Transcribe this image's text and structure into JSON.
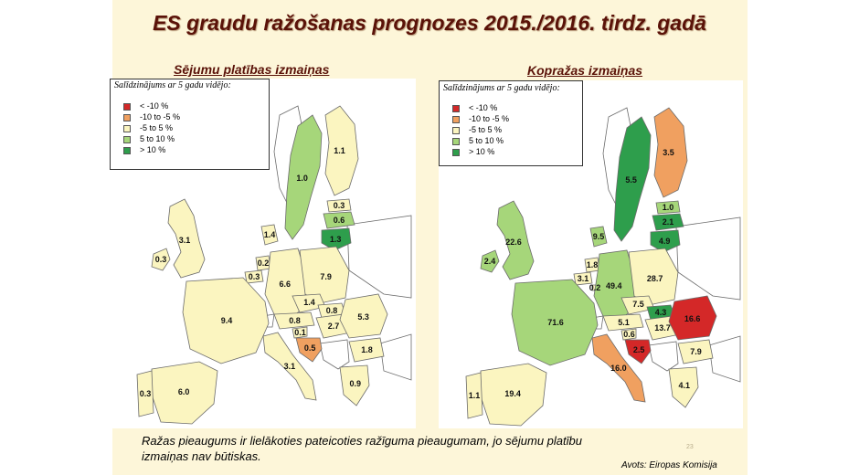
{
  "title": "ES graudu ražošanas prognozes 2015./2016. tirdz. gadā",
  "comparison_label": "Salīdzinājums ar 5 gadu vidējo:",
  "colors": {
    "lt_-10": "#d42828",
    "-10_-5": "#f0a060",
    "-5_5": "#fbf5c0",
    "5_10": "#a6d67a",
    "gt_10": "#2e9e4c",
    "non_eu": "#ffffff",
    "sea": "#ffffff",
    "border": "#6b6b6b"
  },
  "left_map": {
    "title": "Sējumu platības izmaiņas",
    "legend": [
      {
        "label": "< -10 %",
        "color_key": "lt_-10"
      },
      {
        "label": "-10 to -5 %",
        "color_key": "-10_-5"
      },
      {
        "label": "-5 to 5 %",
        "color_key": "-5_5"
      },
      {
        "label": "5 to 10 %",
        "color_key": "5_10"
      },
      {
        "label": "> 10 %",
        "color_key": "gt_10"
      }
    ],
    "regions": [
      {
        "id": "IE",
        "value": "0.3",
        "class": "-5_5"
      },
      {
        "id": "UK",
        "value": "3.1",
        "class": "-5_5"
      },
      {
        "id": "DK",
        "value": "1.4",
        "class": "-5_5"
      },
      {
        "id": "SE",
        "value": "1.0",
        "class": "5_10"
      },
      {
        "id": "FI",
        "value": "1.1",
        "class": "-5_5"
      },
      {
        "id": "EE",
        "value": "0.3",
        "class": "-5_5"
      },
      {
        "id": "LV",
        "value": "0.6",
        "class": "5_10"
      },
      {
        "id": "LT",
        "value": "1.3",
        "class": "gt_10"
      },
      {
        "id": "NL",
        "value": "0.2",
        "class": "-5_5"
      },
      {
        "id": "BE",
        "value": "0.3",
        "class": "-5_5"
      },
      {
        "id": "DE",
        "value": "6.6",
        "class": "-5_5"
      },
      {
        "id": "PL",
        "value": "7.9",
        "class": "-5_5"
      },
      {
        "id": "CZ",
        "value": "1.4",
        "class": "-5_5"
      },
      {
        "id": "SK",
        "value": "0.8",
        "class": "-5_5"
      },
      {
        "id": "AT",
        "value": "0.8",
        "class": "-5_5"
      },
      {
        "id": "HU",
        "value": "2.7",
        "class": "-5_5"
      },
      {
        "id": "SI",
        "value": "0.1",
        "class": "-5_5"
      },
      {
        "id": "HR",
        "value": "0.5",
        "class": "-10_-5"
      },
      {
        "id": "RO",
        "value": "5.3",
        "class": "-5_5"
      },
      {
        "id": "BG",
        "value": "1.8",
        "class": "-5_5"
      },
      {
        "id": "FR",
        "value": "9.4",
        "class": "-5_5"
      },
      {
        "id": "IT",
        "value": "3.1",
        "class": "-5_5"
      },
      {
        "id": "ES",
        "value": "6.0",
        "class": "-5_5"
      },
      {
        "id": "PT",
        "value": "0.3",
        "class": "-5_5"
      },
      {
        "id": "GR",
        "value": "0.9",
        "class": "-5_5"
      }
    ]
  },
  "right_map": {
    "title": "Kopražas izmaiņas",
    "legend": [
      {
        "label": "< -10 %",
        "color_key": "lt_-10"
      },
      {
        "label": "-10 to -5 %",
        "color_key": "-10_-5"
      },
      {
        "label": "-5 to 5 %",
        "color_key": "-5_5"
      },
      {
        "label": "5 to 10 %",
        "color_key": "5_10"
      },
      {
        "label": "> 10 %",
        "color_key": "gt_10"
      }
    ],
    "regions": [
      {
        "id": "IE",
        "value": "2.4",
        "class": "5_10"
      },
      {
        "id": "UK",
        "value": "22.6",
        "class": "5_10"
      },
      {
        "id": "DK",
        "value": "9.5",
        "class": "5_10"
      },
      {
        "id": "SE",
        "value": "5.5",
        "class": "gt_10"
      },
      {
        "id": "FI",
        "value": "3.5",
        "class": "-10_-5"
      },
      {
        "id": "EE",
        "value": "1.0",
        "class": "5_10"
      },
      {
        "id": "LV",
        "value": "2.1",
        "class": "gt_10"
      },
      {
        "id": "LT",
        "value": "4.9",
        "class": "gt_10"
      },
      {
        "id": "NL",
        "value": "1.8",
        "class": "-5_5"
      },
      {
        "id": "BE",
        "value": "3.1",
        "class": "-5_5"
      },
      {
        "id": "LU",
        "value": "0.2",
        "class": "-5_5"
      },
      {
        "id": "DE",
        "value": "49.4",
        "class": "5_10"
      },
      {
        "id": "PL",
        "value": "28.7",
        "class": "-5_5"
      },
      {
        "id": "CZ",
        "value": "7.5",
        "class": "-5_5"
      },
      {
        "id": "SK",
        "value": "4.3",
        "class": "gt_10"
      },
      {
        "id": "AT",
        "value": "5.1",
        "class": "-5_5"
      },
      {
        "id": "HU",
        "value": "13.7",
        "class": "-5_5"
      },
      {
        "id": "SI",
        "value": "0.6",
        "class": "-5_5"
      },
      {
        "id": "HR",
        "value": "2.5",
        "class": "lt_-10"
      },
      {
        "id": "RO",
        "value": "16.6",
        "class": "lt_-10"
      },
      {
        "id": "BG",
        "value": "7.9",
        "class": "-5_5"
      },
      {
        "id": "FR",
        "value": "71.6",
        "class": "5_10"
      },
      {
        "id": "IT",
        "value": "16.0",
        "class": "-10_-5"
      },
      {
        "id": "ES",
        "value": "19.4",
        "class": "-5_5"
      },
      {
        "id": "PT",
        "value": "1.1",
        "class": "-5_5"
      },
      {
        "id": "GR",
        "value": "4.1",
        "class": "-5_5"
      }
    ]
  },
  "note": "Ražas pieaugums ir lielākoties pateicoties ražīguma pieaugumam, jo sējumu platību izmaiņas nav būtiskas.",
  "source": "Avots: Eiropas Komisija",
  "page_number": "23"
}
